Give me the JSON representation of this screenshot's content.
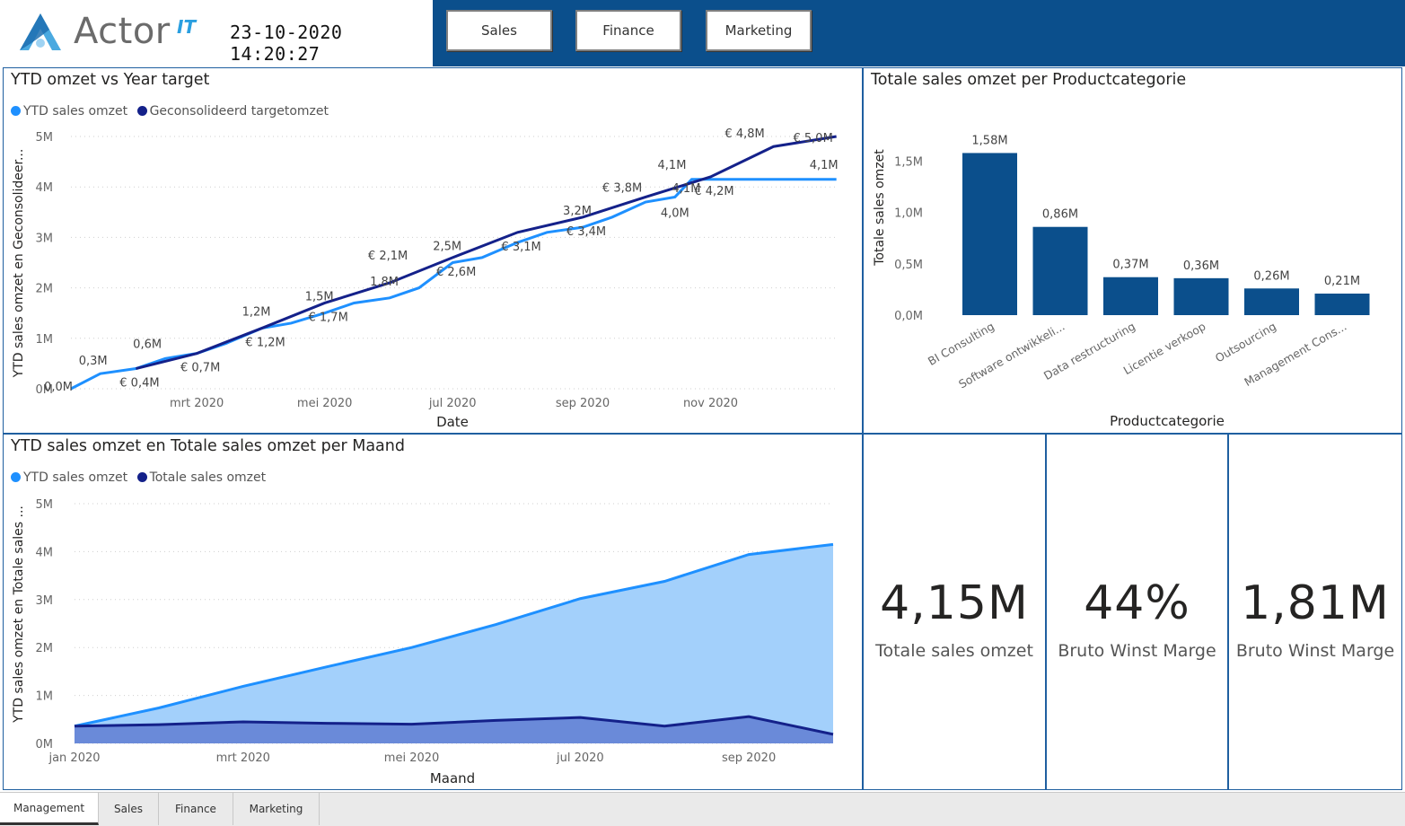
{
  "header": {
    "logo_text": "Actor",
    "logo_sup": "IT",
    "datetime": "23-10-2020 14:20:27",
    "nav_buttons": [
      "Sales",
      "Finance",
      "Marketing"
    ],
    "colors": {
      "bar": "#0b4f8c"
    }
  },
  "panels": {
    "ytd_target": {
      "title": "YTD omzet vs Year target",
      "legend": [
        "YTD sales omzet",
        "Geconsolideerd targetomzet"
      ]
    },
    "categories": {
      "title": "Totale sales omzet per Productcategorie"
    },
    "monthly": {
      "title": "YTD sales omzet en Totale sales omzet per Maand",
      "legend": [
        "YTD sales omzet",
        "Totale sales omzet"
      ]
    }
  },
  "chart_data": [
    {
      "type": "line",
      "title": "YTD omzet vs Year target",
      "xlabel": "Date",
      "ylabel": "YTD sales omzet en Geconsolideer...",
      "x_ticks": [
        "mrt 2020",
        "mei 2020",
        "jul 2020",
        "sep 2020",
        "nov 2020"
      ],
      "y_ticks": [
        "0M",
        "1M",
        "2M",
        "3M",
        "4M",
        "5M"
      ],
      "ylim": [
        0,
        5
      ],
      "grid": true,
      "legend_position": "top-left",
      "colors": [
        "#1e90ff",
        "#14218a"
      ],
      "series": [
        {
          "name": "YTD sales omzet",
          "x": [
            "2020-01-01",
            "2020-01-15",
            "2020-02-01",
            "2020-02-15",
            "2020-03-01",
            "2020-03-15",
            "2020-04-01",
            "2020-04-15",
            "2020-05-01",
            "2020-05-15",
            "2020-06-01",
            "2020-06-15",
            "2020-07-01",
            "2020-07-15",
            "2020-08-01",
            "2020-08-15",
            "2020-09-01",
            "2020-09-15",
            "2020-10-01",
            "2020-10-15",
            "2020-10-23",
            "2020-12-31"
          ],
          "values": [
            0.0,
            0.3,
            0.4,
            0.6,
            0.7,
            0.9,
            1.2,
            1.3,
            1.5,
            1.7,
            1.8,
            2.0,
            2.5,
            2.6,
            2.9,
            3.1,
            3.2,
            3.4,
            3.7,
            3.8,
            4.15,
            4.15
          ],
          "labels": [
            "0,0M",
            "0,3M",
            "0,6M",
            "1,2M",
            "1,5M",
            "1,8M",
            "2,5M",
            "3,2M",
            "4,0M",
            "4,1M",
            "4,1M",
            "4,1M"
          ]
        },
        {
          "name": "Geconsolideerd targetomzet",
          "x": [
            "2020-02-01",
            "2020-03-01",
            "2020-04-01",
            "2020-05-01",
            "2020-06-01",
            "2020-07-01",
            "2020-08-01",
            "2020-09-01",
            "2020-10-01",
            "2020-11-01",
            "2020-12-01",
            "2020-12-31"
          ],
          "values": [
            0.4,
            0.7,
            1.2,
            1.7,
            2.1,
            2.6,
            3.1,
            3.4,
            3.8,
            4.2,
            4.8,
            5.0
          ],
          "labels": [
            "€ 0,4M",
            "€ 0,7M",
            "€ 1,2M",
            "€ 1,7M",
            "€ 2,1M",
            "€ 2,6M",
            "€ 3,1M",
            "€ 3,4M",
            "€ 3,8M",
            "€ 4,2M",
            "€ 4,8M",
            "€ 5,0M"
          ]
        }
      ]
    },
    {
      "type": "bar",
      "title": "Totale sales omzet per Productcategorie",
      "xlabel": "Productcategorie",
      "ylabel": "Totale sales omzet",
      "categories": [
        "BI Consulting",
        "Software ontwikkeli...",
        "Data restructuring",
        "Licentie verkoop",
        "Outsourcing",
        "Management Cons..."
      ],
      "values": [
        1.58,
        0.86,
        0.37,
        0.36,
        0.26,
        0.21
      ],
      "labels": [
        "1,58M",
        "0,86M",
        "0,37M",
        "0,36M",
        "0,26M",
        "0,21M"
      ],
      "y_ticks": [
        "0,0M",
        "0,5M",
        "1,0M",
        "1,5M"
      ],
      "ylim": [
        0,
        1.75
      ],
      "color": "#0b4f8c"
    },
    {
      "type": "area",
      "title": "YTD sales omzet en Totale sales omzet per Maand",
      "xlabel": "Maand",
      "ylabel": "YTD sales omzet en Totale sales ...",
      "x": [
        "2020-01",
        "2020-02",
        "2020-03",
        "2020-04",
        "2020-05",
        "2020-06",
        "2020-07",
        "2020-08",
        "2020-09",
        "2020-10"
      ],
      "x_ticks": [
        "jan 2020",
        "mrt 2020",
        "mei 2020",
        "jul 2020",
        "sep 2020"
      ],
      "y_ticks": [
        "0M",
        "1M",
        "2M",
        "3M",
        "4M",
        "5M"
      ],
      "ylim": [
        0,
        5
      ],
      "grid": true,
      "legend_position": "top-left",
      "series": [
        {
          "name": "YTD sales omzet",
          "values": [
            0.36,
            0.74,
            1.19,
            1.6,
            2.0,
            2.48,
            3.02,
            3.38,
            3.94,
            4.15
          ],
          "color": "#1e90ff",
          "fill": "#a3d0fb"
        },
        {
          "name": "Totale sales omzet",
          "values": [
            0.36,
            0.39,
            0.45,
            0.42,
            0.4,
            0.48,
            0.54,
            0.36,
            0.56,
            0.19
          ],
          "color": "#14218a",
          "fill": "#6a8ad9"
        }
      ]
    }
  ],
  "kpis": [
    {
      "value": "4,15M",
      "label": "Totale sales omzet"
    },
    {
      "value": "44%",
      "label": "Bruto Winst Marge"
    },
    {
      "value": "1,81M",
      "label": "Bruto Winst Marge"
    }
  ],
  "tabs": [
    "Management",
    "Sales",
    "Finance",
    "Marketing"
  ]
}
